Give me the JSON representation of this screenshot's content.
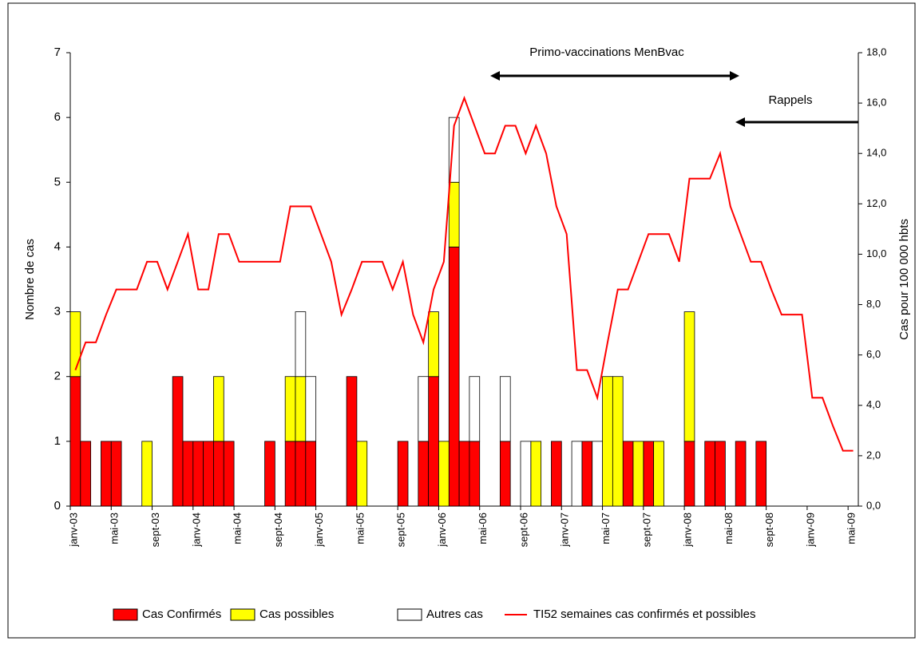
{
  "chart_data": {
    "type": "bar",
    "stacked": true,
    "ylabel": "Nombre de cas",
    "y2label": "Cas pour 100 000 hbts",
    "annotations": [
      "Primo-vaccinations MenBvac",
      "Rappels"
    ],
    "categories": [
      "janv-03",
      null,
      null,
      null,
      "mai-03",
      null,
      null,
      null,
      "sept-03",
      null,
      null,
      null,
      "janv-04",
      null,
      null,
      null,
      "mai-04",
      null,
      null,
      null,
      "sept-04",
      null,
      null,
      null,
      "janv-05",
      null,
      null,
      null,
      "mai-05",
      null,
      null,
      null,
      "sept-05",
      null,
      null,
      null,
      "janv-06",
      null,
      null,
      null,
      "mai-06",
      null,
      null,
      null,
      "sept-06",
      null,
      null,
      null,
      "janv-07",
      null,
      null,
      null,
      "mai-07",
      null,
      null,
      null,
      "sept-07",
      null,
      null,
      null,
      "janv-08",
      null,
      null,
      null,
      "mai-08",
      null,
      null,
      null,
      "sept-08",
      null,
      null,
      null,
      "janv-09",
      null,
      null,
      null,
      "mai-09"
    ],
    "ylim": [
      0,
      7
    ],
    "yticks": [
      0,
      1,
      2,
      3,
      4,
      5,
      6,
      7
    ],
    "y2lim": [
      0,
      18
    ],
    "y2ticks": [
      {
        "value": 0,
        "label": "0,0"
      },
      {
        "value": 2,
        "label": "2,0"
      },
      {
        "value": 4,
        "label": "4,0"
      },
      {
        "value": 6,
        "label": "6,0"
      },
      {
        "value": 8,
        "label": "8,0"
      },
      {
        "value": 10,
        "label": "10,0"
      },
      {
        "value": 12,
        "label": "12,0"
      },
      {
        "value": 14,
        "label": "14,0"
      },
      {
        "value": 16,
        "label": "16,0"
      },
      {
        "value": 18,
        "label": "18,0"
      }
    ],
    "series": [
      {
        "name": "Cas Confirmés",
        "type": "bar",
        "color": "#ff0000",
        "values": [
          2,
          1,
          0,
          1,
          1,
          0,
          0,
          0,
          0,
          0,
          2,
          1,
          1,
          1,
          1,
          1,
          0,
          0,
          0,
          1,
          0,
          1,
          1,
          1,
          0,
          0,
          0,
          2,
          0,
          0,
          0,
          0,
          1,
          0,
          1,
          2,
          0,
          4,
          1,
          1,
          0,
          0,
          1,
          0,
          0,
          0,
          0,
          1,
          0,
          0,
          1,
          0,
          0,
          0,
          1,
          0,
          1,
          0,
          0,
          0,
          1,
          0,
          1,
          1,
          0,
          1,
          0,
          1,
          0,
          0,
          0,
          0,
          0,
          0,
          0,
          0,
          0
        ]
      },
      {
        "name": "Cas possibles",
        "type": "bar",
        "color": "#ffff00",
        "values": [
          1,
          0,
          0,
          0,
          0,
          0,
          0,
          1,
          0,
          0,
          0,
          0,
          0,
          0,
          1,
          0,
          0,
          0,
          0,
          0,
          0,
          1,
          1,
          0,
          0,
          0,
          0,
          0,
          1,
          0,
          0,
          0,
          0,
          0,
          0,
          1,
          1,
          1,
          0,
          0,
          0,
          0,
          0,
          0,
          0,
          1,
          0,
          0,
          0,
          0,
          0,
          0,
          2,
          2,
          0,
          1,
          0,
          1,
          0,
          0,
          2,
          0,
          0,
          0,
          0,
          0,
          0,
          0,
          0,
          0,
          0,
          0,
          0,
          0,
          0,
          0,
          0
        ]
      },
      {
        "name": "Autres cas",
        "type": "bar",
        "color": "#ffffff",
        "values": [
          0,
          0,
          0,
          0,
          0,
          0,
          0,
          0,
          0,
          0,
          0,
          0,
          0,
          0,
          0,
          0,
          0,
          0,
          0,
          0,
          0,
          0,
          1,
          1,
          0,
          0,
          0,
          0,
          0,
          0,
          0,
          0,
          0,
          0,
          1,
          0,
          0,
          1,
          0,
          1,
          0,
          0,
          1,
          0,
          1,
          0,
          0,
          0,
          0,
          1,
          0,
          1,
          0,
          0,
          0,
          0,
          0,
          0,
          0,
          0,
          0,
          0,
          0,
          0,
          0,
          0,
          0,
          0,
          0,
          0,
          0,
          0,
          0,
          0,
          0,
          0,
          0
        ]
      },
      {
        "name": "TI52 semaines cas confirmés et possibles",
        "type": "line",
        "axis": "y2",
        "color": "#ff0000",
        "values": [
          5.4,
          6.5,
          6.5,
          7.6,
          8.6,
          8.6,
          8.6,
          9.7,
          9.7,
          8.6,
          9.7,
          10.8,
          8.6,
          8.6,
          10.8,
          10.8,
          9.7,
          9.7,
          9.7,
          9.7,
          9.7,
          11.9,
          11.9,
          11.9,
          10.8,
          9.7,
          7.6,
          8.6,
          9.7,
          9.7,
          9.7,
          8.6,
          9.7,
          7.6,
          6.5,
          8.6,
          9.7,
          15.1,
          16.2,
          15.1,
          14.0,
          14.0,
          15.1,
          15.1,
          14.0,
          15.1,
          14.0,
          11.9,
          10.8,
          5.4,
          5.4,
          4.3,
          6.5,
          8.6,
          8.6,
          9.7,
          10.8,
          10.8,
          10.8,
          9.7,
          13.0,
          13.0,
          13.0,
          14.0,
          11.9,
          10.8,
          9.7,
          9.7,
          8.6,
          7.6,
          7.6,
          7.6,
          4.3,
          4.3,
          3.2,
          2.2,
          2.2
        ]
      }
    ]
  }
}
